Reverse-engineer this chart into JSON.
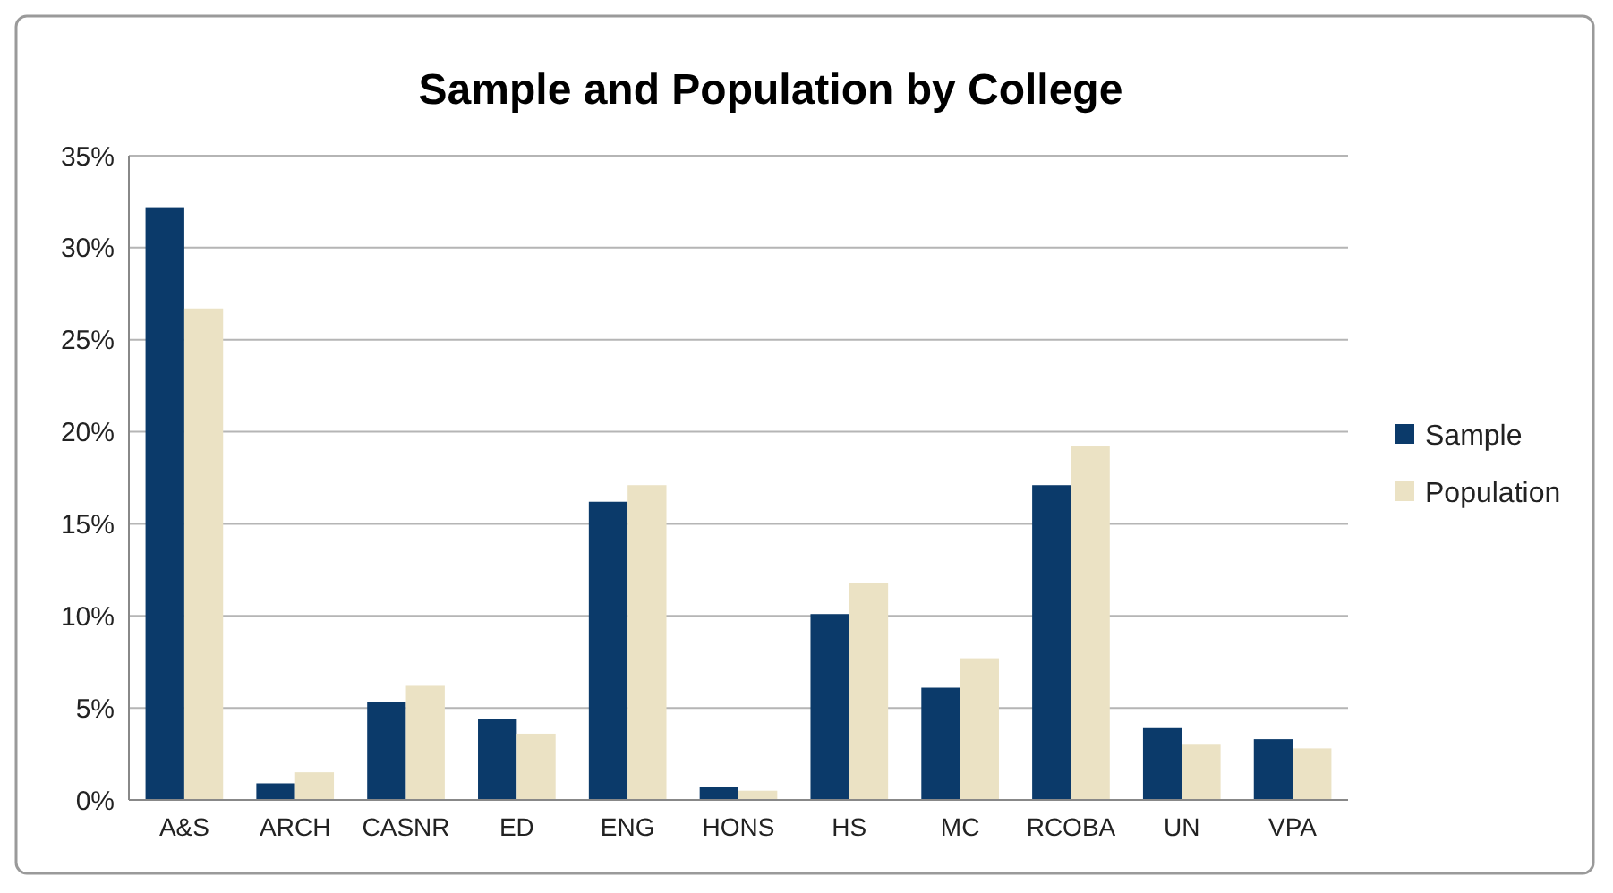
{
  "chart_data": {
    "type": "bar",
    "title": "Sample and Population by College",
    "categories": [
      "A&S",
      "ARCH",
      "CASNR",
      "ED",
      "ENG",
      "HONS",
      "HS",
      "MC",
      "RCOBA",
      "UN",
      "VPA"
    ],
    "series": [
      {
        "name": "Sample",
        "color": "#0b3a6a",
        "values": [
          32.2,
          0.9,
          5.3,
          4.4,
          16.2,
          0.7,
          10.1,
          6.1,
          17.1,
          3.9,
          3.3
        ]
      },
      {
        "name": "Population",
        "color": "#ebe2c4",
        "values": [
          26.7,
          1.5,
          6.2,
          3.6,
          17.1,
          0.5,
          11.8,
          7.7,
          19.2,
          3.0,
          2.8
        ]
      }
    ],
    "ylim": [
      0,
      35
    ],
    "yticks": [
      {
        "value": 0,
        "label": "0%"
      },
      {
        "value": 5,
        "label": "5%"
      },
      {
        "value": 10,
        "label": "10%"
      },
      {
        "value": 15,
        "label": "15%"
      },
      {
        "value": 20,
        "label": "20%"
      },
      {
        "value": 25,
        "label": "25%"
      },
      {
        "value": 30,
        "label": "30%"
      },
      {
        "value": 35,
        "label": "35%"
      }
    ],
    "grid": "y",
    "legend": "right"
  }
}
